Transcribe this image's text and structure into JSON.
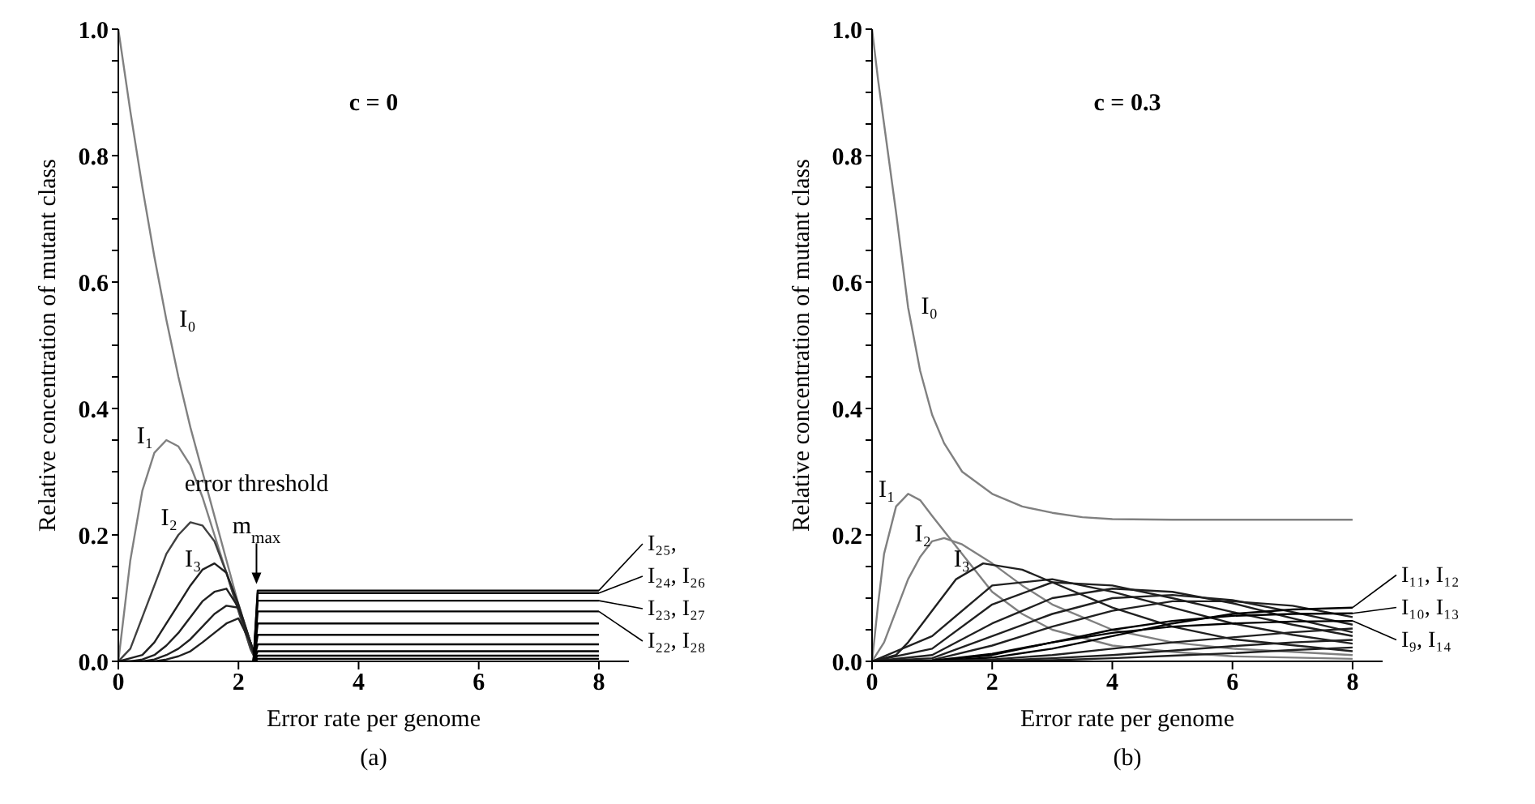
{
  "chart_data": [
    {
      "type": "line",
      "title": "c = 0",
      "xlabel": "Error rate per genome",
      "ylabel": "Relative concentration of mutant class",
      "xlim": [
        0,
        8.5
      ],
      "ylim": [
        0,
        1.0
      ],
      "legend": "right",
      "xticks": [
        0,
        2,
        4,
        6,
        8
      ],
      "yticks": [
        {
          "value": 0,
          "label": "0.0"
        },
        {
          "value": 0.05,
          "label": null
        },
        {
          "value": 0.1,
          "label": null
        },
        {
          "value": 0.15,
          "label": null
        },
        {
          "value": 0.2,
          "label": "0.2"
        },
        {
          "value": 0.25,
          "label": null
        },
        {
          "value": 0.3,
          "label": null
        },
        {
          "value": 0.35,
          "label": null
        },
        {
          "value": 0.4,
          "label": "0.4"
        },
        {
          "value": 0.45,
          "label": null
        },
        {
          "value": 0.5,
          "label": null
        },
        {
          "value": 0.55,
          "label": null
        },
        {
          "value": 0.6,
          "label": "0.6"
        },
        {
          "value": 0.65,
          "label": null
        },
        {
          "value": 0.7,
          "label": null
        },
        {
          "value": 0.75,
          "label": null
        },
        {
          "value": 0.8,
          "label": "0.8"
        },
        {
          "value": 0.85,
          "label": null
        },
        {
          "value": 0.9,
          "label": null
        },
        {
          "value": 0.95,
          "label": null
        },
        {
          "value": 1.0,
          "label": "1.0"
        }
      ],
      "annotations": [
        "error threshold",
        {
          "text": "m$_{max}$",
          "x": 2.3,
          "y": 0.12
        },
        "(a)"
      ],
      "series": [
        {
          "name": "I₀",
          "color": "#808080",
          "x": [
            0,
            0.2,
            0.4,
            0.6,
            0.8,
            1.0,
            1.2,
            1.4,
            1.6,
            1.8,
            2.0,
            2.2,
            2.3
          ],
          "values": [
            1.0,
            0.87,
            0.75,
            0.64,
            0.54,
            0.45,
            0.37,
            0.3,
            0.23,
            0.16,
            0.09,
            0.03,
            0
          ]
        },
        {
          "name": "I₁",
          "color": "#808080",
          "x": [
            0,
            0.2,
            0.4,
            0.6,
            0.8,
            1.0,
            1.2,
            1.4,
            1.6,
            1.8,
            2.0,
            2.2,
            2.3
          ],
          "values": [
            0,
            0.16,
            0.27,
            0.33,
            0.35,
            0.34,
            0.31,
            0.26,
            0.2,
            0.14,
            0.08,
            0.02,
            0
          ]
        },
        {
          "name": "I₂",
          "color": "#404040",
          "x": [
            0,
            0.2,
            0.4,
            0.6,
            0.8,
            1.0,
            1.2,
            1.4,
            1.6,
            1.8,
            2.0,
            2.2,
            2.3
          ],
          "values": [
            0,
            0.02,
            0.07,
            0.12,
            0.17,
            0.2,
            0.22,
            0.215,
            0.19,
            0.14,
            0.08,
            0.02,
            0
          ]
        },
        {
          "name": "I₃",
          "color": "#202020",
          "x": [
            0,
            0.2,
            0.4,
            0.6,
            0.8,
            1.0,
            1.2,
            1.4,
            1.6,
            1.8,
            2.0,
            2.2,
            2.3
          ],
          "values": [
            0,
            0.005,
            0.01,
            0.03,
            0.06,
            0.09,
            0.12,
            0.145,
            0.155,
            0.14,
            0.09,
            0.03,
            0
          ]
        },
        {
          "color": "#202020",
          "x": [
            0,
            0.2,
            0.4,
            0.6,
            0.8,
            1.0,
            1.2,
            1.4,
            1.6,
            1.8,
            2.0,
            2.2,
            2.3
          ],
          "values": [
            0,
            0,
            0.003,
            0.01,
            0.025,
            0.045,
            0.07,
            0.095,
            0.11,
            0.115,
            0.085,
            0.03,
            0
          ]
        },
        {
          "color": "#202020",
          "x": [
            0,
            0.2,
            0.4,
            0.6,
            0.8,
            1.0,
            1.2,
            1.4,
            1.6,
            1.8,
            2.0,
            2.2,
            2.3
          ],
          "values": [
            0,
            0,
            0,
            0.003,
            0.01,
            0.02,
            0.035,
            0.055,
            0.075,
            0.088,
            0.085,
            0.03,
            0
          ]
        },
        {
          "color": "#202020",
          "x": [
            0,
            0.2,
            0.4,
            0.6,
            0.8,
            1.0,
            1.2,
            1.4,
            1.6,
            1.8,
            2.0,
            2.2,
            2.3
          ],
          "values": [
            0,
            0,
            0,
            0,
            0.003,
            0.008,
            0.016,
            0.03,
            0.045,
            0.06,
            0.068,
            0.03,
            0
          ]
        },
        {
          "name": "I₂₅,",
          "color": "#000000",
          "x": [
            2.25,
            2.32,
            8
          ],
          "values": [
            0,
            0.112,
            0.112
          ]
        },
        {
          "name": "I₂₄, I₂₆",
          "color": "#000000",
          "x": [
            2.25,
            2.32,
            8
          ],
          "values": [
            0,
            0.108,
            0.108
          ]
        },
        {
          "name": "I₂₃, I₂₇",
          "color": "#000000",
          "x": [
            2.25,
            2.32,
            8
          ],
          "values": [
            0,
            0.096,
            0.096
          ]
        },
        {
          "name": "I₂₂, I₂₈",
          "color": "#000000",
          "x": [
            2.25,
            2.32,
            8
          ],
          "values": [
            0,
            0.079,
            0.079
          ]
        },
        {
          "color": "#000000",
          "x": [
            2.25,
            2.32,
            8
          ],
          "values": [
            0,
            0.06,
            0.06
          ]
        },
        {
          "color": "#000000",
          "x": [
            2.25,
            2.32,
            8
          ],
          "values": [
            0,
            0.042,
            0.042
          ]
        },
        {
          "color": "#000000",
          "x": [
            2.25,
            2.32,
            8
          ],
          "values": [
            0,
            0.027,
            0.027
          ]
        },
        {
          "color": "#000000",
          "x": [
            2.25,
            2.32,
            8
          ],
          "values": [
            0,
            0.016,
            0.016
          ]
        },
        {
          "color": "#000000",
          "x": [
            2.25,
            2.32,
            8
          ],
          "values": [
            0,
            0.009,
            0.009
          ]
        },
        {
          "color": "#000000",
          "x": [
            2.25,
            2.32,
            8
          ],
          "values": [
            0,
            0.004,
            0.004
          ]
        }
      ]
    },
    {
      "type": "line",
      "title": "c = 0.3",
      "xlabel": "Error rate per genome",
      "ylabel": "Relative concentration of mutant class",
      "xlim": [
        0,
        8.5
      ],
      "ylim": [
        0,
        1.0
      ],
      "legend": "right",
      "xticks": [
        0,
        2,
        4,
        6,
        8
      ],
      "yticks": [
        {
          "value": 0,
          "label": "0.0"
        },
        {
          "value": 0.05,
          "label": null
        },
        {
          "value": 0.1,
          "label": null
        },
        {
          "value": 0.15,
          "label": null
        },
        {
          "value": 0.2,
          "label": "0.2"
        },
        {
          "value": 0.25,
          "label": null
        },
        {
          "value": 0.3,
          "label": null
        },
        {
          "value": 0.35,
          "label": null
        },
        {
          "value": 0.4,
          "label": "0.4"
        },
        {
          "value": 0.45,
          "label": null
        },
        {
          "value": 0.5,
          "label": null
        },
        {
          "value": 0.55,
          "label": null
        },
        {
          "value": 0.6,
          "label": "0.6"
        },
        {
          "value": 0.65,
          "label": null
        },
        {
          "value": 0.7,
          "label": null
        },
        {
          "value": 0.75,
          "label": null
        },
        {
          "value": 0.8,
          "label": "0.8"
        },
        {
          "value": 0.85,
          "label": null
        },
        {
          "value": 0.9,
          "label": null
        },
        {
          "value": 0.95,
          "label": null
        },
        {
          "value": 1.0,
          "label": "1.0"
        }
      ],
      "annotations": [
        "(b)"
      ],
      "series": [
        {
          "name": "I₀",
          "color": "#808080",
          "x": [
            0,
            0.1,
            0.2,
            0.4,
            0.6,
            0.8,
            1.0,
            1.2,
            1.5,
            2.0,
            2.5,
            3.0,
            3.5,
            4.0,
            5.0,
            6.0,
            8.0
          ],
          "values": [
            1.0,
            0.92,
            0.85,
            0.71,
            0.56,
            0.46,
            0.39,
            0.345,
            0.3,
            0.265,
            0.245,
            0.235,
            0.228,
            0.225,
            0.224,
            0.224,
            0.224
          ]
        },
        {
          "name": "I₁",
          "color": "#808080",
          "x": [
            0,
            0.1,
            0.2,
            0.4,
            0.6,
            0.8,
            1.0,
            1.5,
            2.0,
            2.5,
            3,
            4,
            5,
            6,
            8
          ],
          "values": [
            0,
            0.09,
            0.17,
            0.245,
            0.265,
            0.255,
            0.23,
            0.17,
            0.11,
            0.075,
            0.05,
            0.025,
            0.015,
            0.008,
            0.004
          ]
        },
        {
          "name": "I₂",
          "color": "#808080",
          "x": [
            0,
            0.2,
            0.4,
            0.6,
            0.8,
            1.0,
            1.2,
            1.5,
            2.0,
            2.5,
            3,
            4,
            5,
            6,
            8
          ],
          "values": [
            0,
            0.03,
            0.08,
            0.13,
            0.165,
            0.19,
            0.195,
            0.185,
            0.155,
            0.12,
            0.09,
            0.05,
            0.03,
            0.02,
            0.01
          ]
        },
        {
          "name": "I₃",
          "color": "#202020",
          "x": [
            0,
            0.4,
            0.6,
            1.0,
            1.4,
            1.85,
            2.5,
            3,
            4,
            5,
            6,
            8
          ],
          "values": [
            0,
            0.01,
            0.03,
            0.08,
            0.13,
            0.155,
            0.145,
            0.125,
            0.085,
            0.055,
            0.035,
            0.016
          ]
        },
        {
          "color": "#202020",
          "x": [
            0,
            1,
            2,
            3,
            4,
            5,
            6,
            7,
            8
          ],
          "values": [
            0,
            0.04,
            0.12,
            0.13,
            0.11,
            0.085,
            0.06,
            0.042,
            0.028
          ]
        },
        {
          "color": "#202020",
          "x": [
            0,
            1,
            2,
            3,
            4,
            5,
            6,
            7,
            8
          ],
          "values": [
            0,
            0.02,
            0.09,
            0.125,
            0.12,
            0.1,
            0.078,
            0.058,
            0.04
          ]
        },
        {
          "color": "#202020",
          "x": [
            0,
            1,
            2,
            3,
            4,
            5,
            6,
            7,
            8
          ],
          "values": [
            0,
            0.01,
            0.06,
            0.1,
            0.115,
            0.11,
            0.092,
            0.068,
            0.046
          ]
        },
        {
          "color": "#202020",
          "x": [
            0,
            1,
            2,
            3,
            4,
            5,
            6,
            7,
            8
          ],
          "values": [
            0,
            0.005,
            0.04,
            0.075,
            0.1,
            0.105,
            0.097,
            0.078,
            0.058
          ]
        },
        {
          "color": "#202020",
          "x": [
            0,
            1,
            2,
            3,
            4,
            5,
            6,
            7,
            8
          ],
          "values": [
            0,
            0.002,
            0.025,
            0.055,
            0.08,
            0.095,
            0.095,
            0.088,
            0.07
          ]
        },
        {
          "name": "I₁₁, I₁₂",
          "color": "#000000",
          "x": [
            0,
            1,
            2,
            3,
            4,
            5,
            6,
            7,
            8
          ],
          "values": [
            0,
            0,
            0.006,
            0.02,
            0.04,
            0.06,
            0.075,
            0.082,
            0.085
          ]
        },
        {
          "name": "I₁₀, I₁₃",
          "color": "#000000",
          "x": [
            0,
            1,
            2,
            3,
            4,
            5,
            6,
            7,
            8
          ],
          "values": [
            0,
            0.001,
            0.01,
            0.03,
            0.05,
            0.064,
            0.072,
            0.075,
            0.076
          ]
        },
        {
          "name": "I₉, I₁₄",
          "color": "#000000",
          "x": [
            0,
            1,
            2,
            3,
            4,
            5,
            6,
            7,
            8
          ],
          "values": [
            0,
            0.001,
            0.012,
            0.03,
            0.045,
            0.055,
            0.06,
            0.063,
            0.064
          ]
        },
        {
          "color": "#202020",
          "x": [
            0,
            1,
            2,
            3,
            4,
            5,
            6,
            7,
            8
          ],
          "values": [
            0,
            0,
            0.003,
            0.01,
            0.02,
            0.03,
            0.038,
            0.046,
            0.052
          ]
        },
        {
          "color": "#202020",
          "x": [
            0,
            1,
            2,
            3,
            4,
            5,
            6,
            7,
            8
          ],
          "values": [
            0,
            0,
            0.001,
            0.005,
            0.01,
            0.017,
            0.024,
            0.03,
            0.034
          ]
        },
        {
          "color": "#202020",
          "x": [
            0,
            1,
            2,
            3,
            4,
            5,
            6,
            7,
            8
          ],
          "values": [
            0,
            0,
            0,
            0.002,
            0.005,
            0.009,
            0.013,
            0.018,
            0.022
          ]
        }
      ]
    }
  ]
}
